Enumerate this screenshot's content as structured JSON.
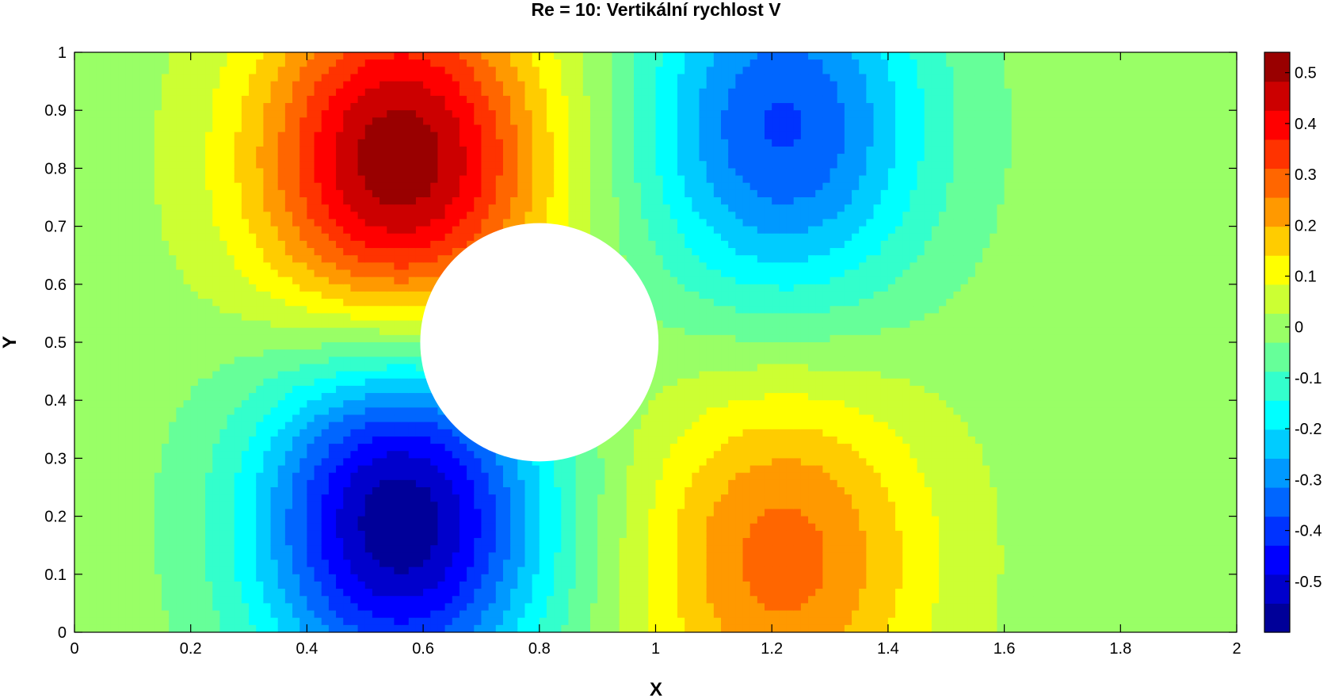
{
  "chart_data": {
    "type": "heatmap",
    "title": "Re = 10: Vertikální rychlost V",
    "xlabel": "X",
    "ylabel": "Y",
    "xlim": [
      0,
      2
    ],
    "ylim": [
      0,
      1
    ],
    "x_ticks": [
      "0",
      "0.2",
      "0.4",
      "0.6",
      "0.8",
      "1",
      "1.2",
      "1.4",
      "1.6",
      "1.8",
      "2"
    ],
    "y_ticks": [
      "0",
      "0.1",
      "0.2",
      "0.3",
      "0.4",
      "0.5",
      "0.6",
      "0.7",
      "0.8",
      "0.9",
      "1"
    ],
    "colorbar": {
      "colormap": "jet",
      "range": [
        -0.6,
        0.54
      ],
      "ticks": [
        "-0.5",
        "-0.4",
        "-0.3",
        "-0.2",
        "-0.1",
        "0",
        "0.1",
        "0.2",
        "0.3",
        "0.4",
        "0.5"
      ]
    },
    "obstacle": {
      "shape": "circle",
      "cx": 0.8,
      "cy": 0.5,
      "r": 0.205
    },
    "extrema": [
      {
        "x": 0.56,
        "y": 0.8,
        "v": 0.54
      },
      {
        "x": 0.56,
        "y": 0.2,
        "v": -0.6
      },
      {
        "x": 1.22,
        "y": 0.87,
        "v": -0.38
      },
      {
        "x": 1.22,
        "y": 0.13,
        "v": 0.28
      }
    ],
    "levels": 20
  }
}
